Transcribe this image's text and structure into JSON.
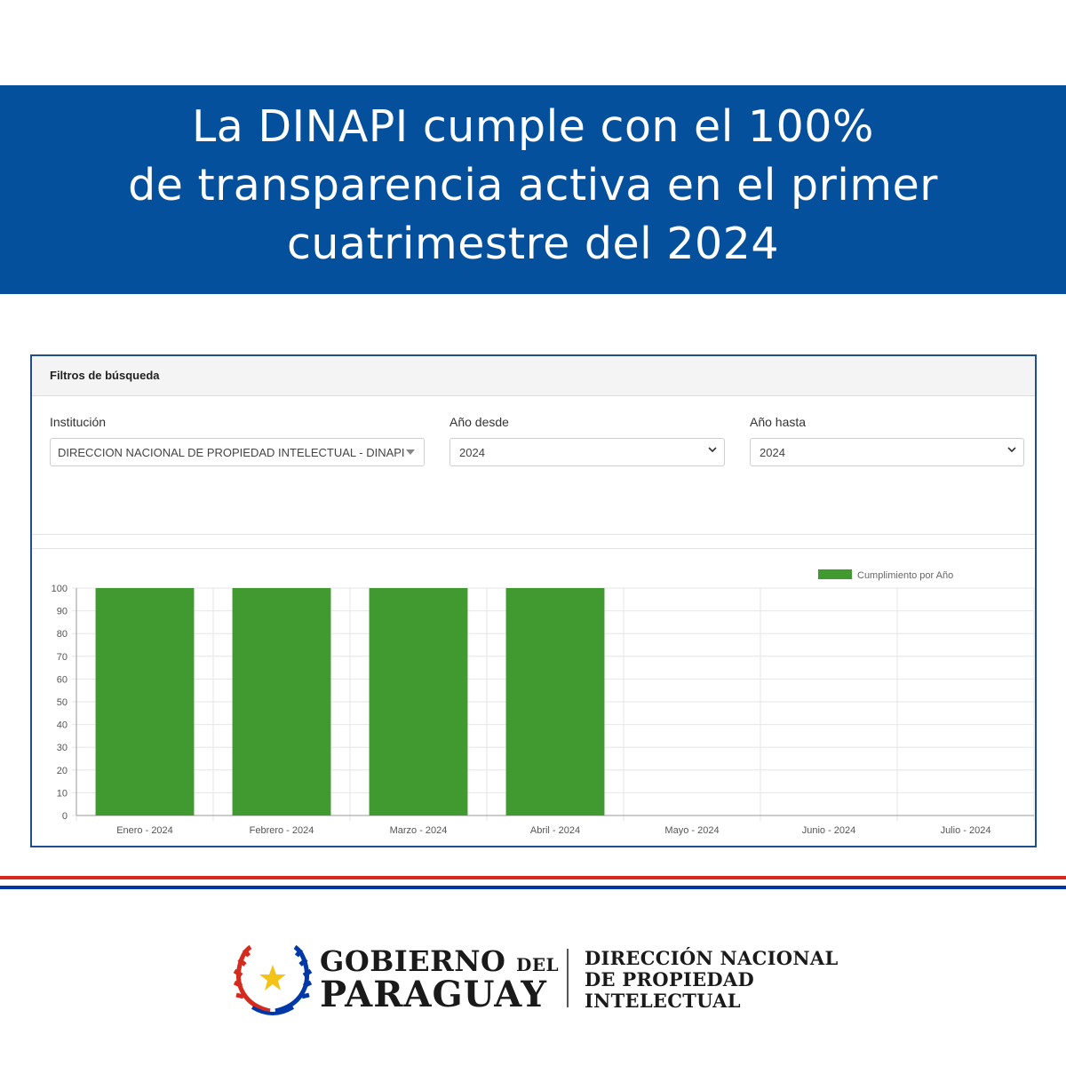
{
  "banner": {
    "line1": "La DINAPI cumple con el 100%",
    "line2": "de transparencia activa en el primer",
    "line3": "cuatrimestre del 2024"
  },
  "filters": {
    "title": "Filtros de búsqueda",
    "institution_label": "Institución",
    "institution_value": "DIRECCION NACIONAL DE PROPIEDAD INTELECTUAL - DINAPI",
    "year_from_label": "Año desde",
    "year_from_value": "2024",
    "year_to_label": "Año hasta",
    "year_to_value": "2024"
  },
  "chart_data": {
    "type": "bar",
    "categories": [
      "Enero - 2024",
      "Febrero - 2024",
      "Marzo - 2024",
      "Abril - 2024",
      "Mayo - 2024",
      "Junio - 2024",
      "Julio - 2024"
    ],
    "series": [
      {
        "name": "Cumplimiento por Año",
        "values": [
          100,
          100,
          100,
          100,
          null,
          null,
          null
        ],
        "color": "#409a2f"
      }
    ],
    "ylim": [
      0,
      100
    ],
    "yticks": [
      0,
      10,
      20,
      30,
      40,
      50,
      60,
      70,
      80,
      90,
      100
    ],
    "grid": true,
    "legend": "top-right"
  },
  "footer": {
    "gov_line1": "GOBIERNO",
    "gov_del": "DEL",
    "gov_line2": "PARAGUAY",
    "org_line1": "DIRECCIÓN NACIONAL",
    "org_line2": "DE PROPIEDAD",
    "org_line3": "INTELECTUAL"
  },
  "colors": {
    "banner": "#04509c",
    "bar": "#409a2f",
    "flag_red": "#d52b1e",
    "flag_blue": "#0038a8"
  }
}
